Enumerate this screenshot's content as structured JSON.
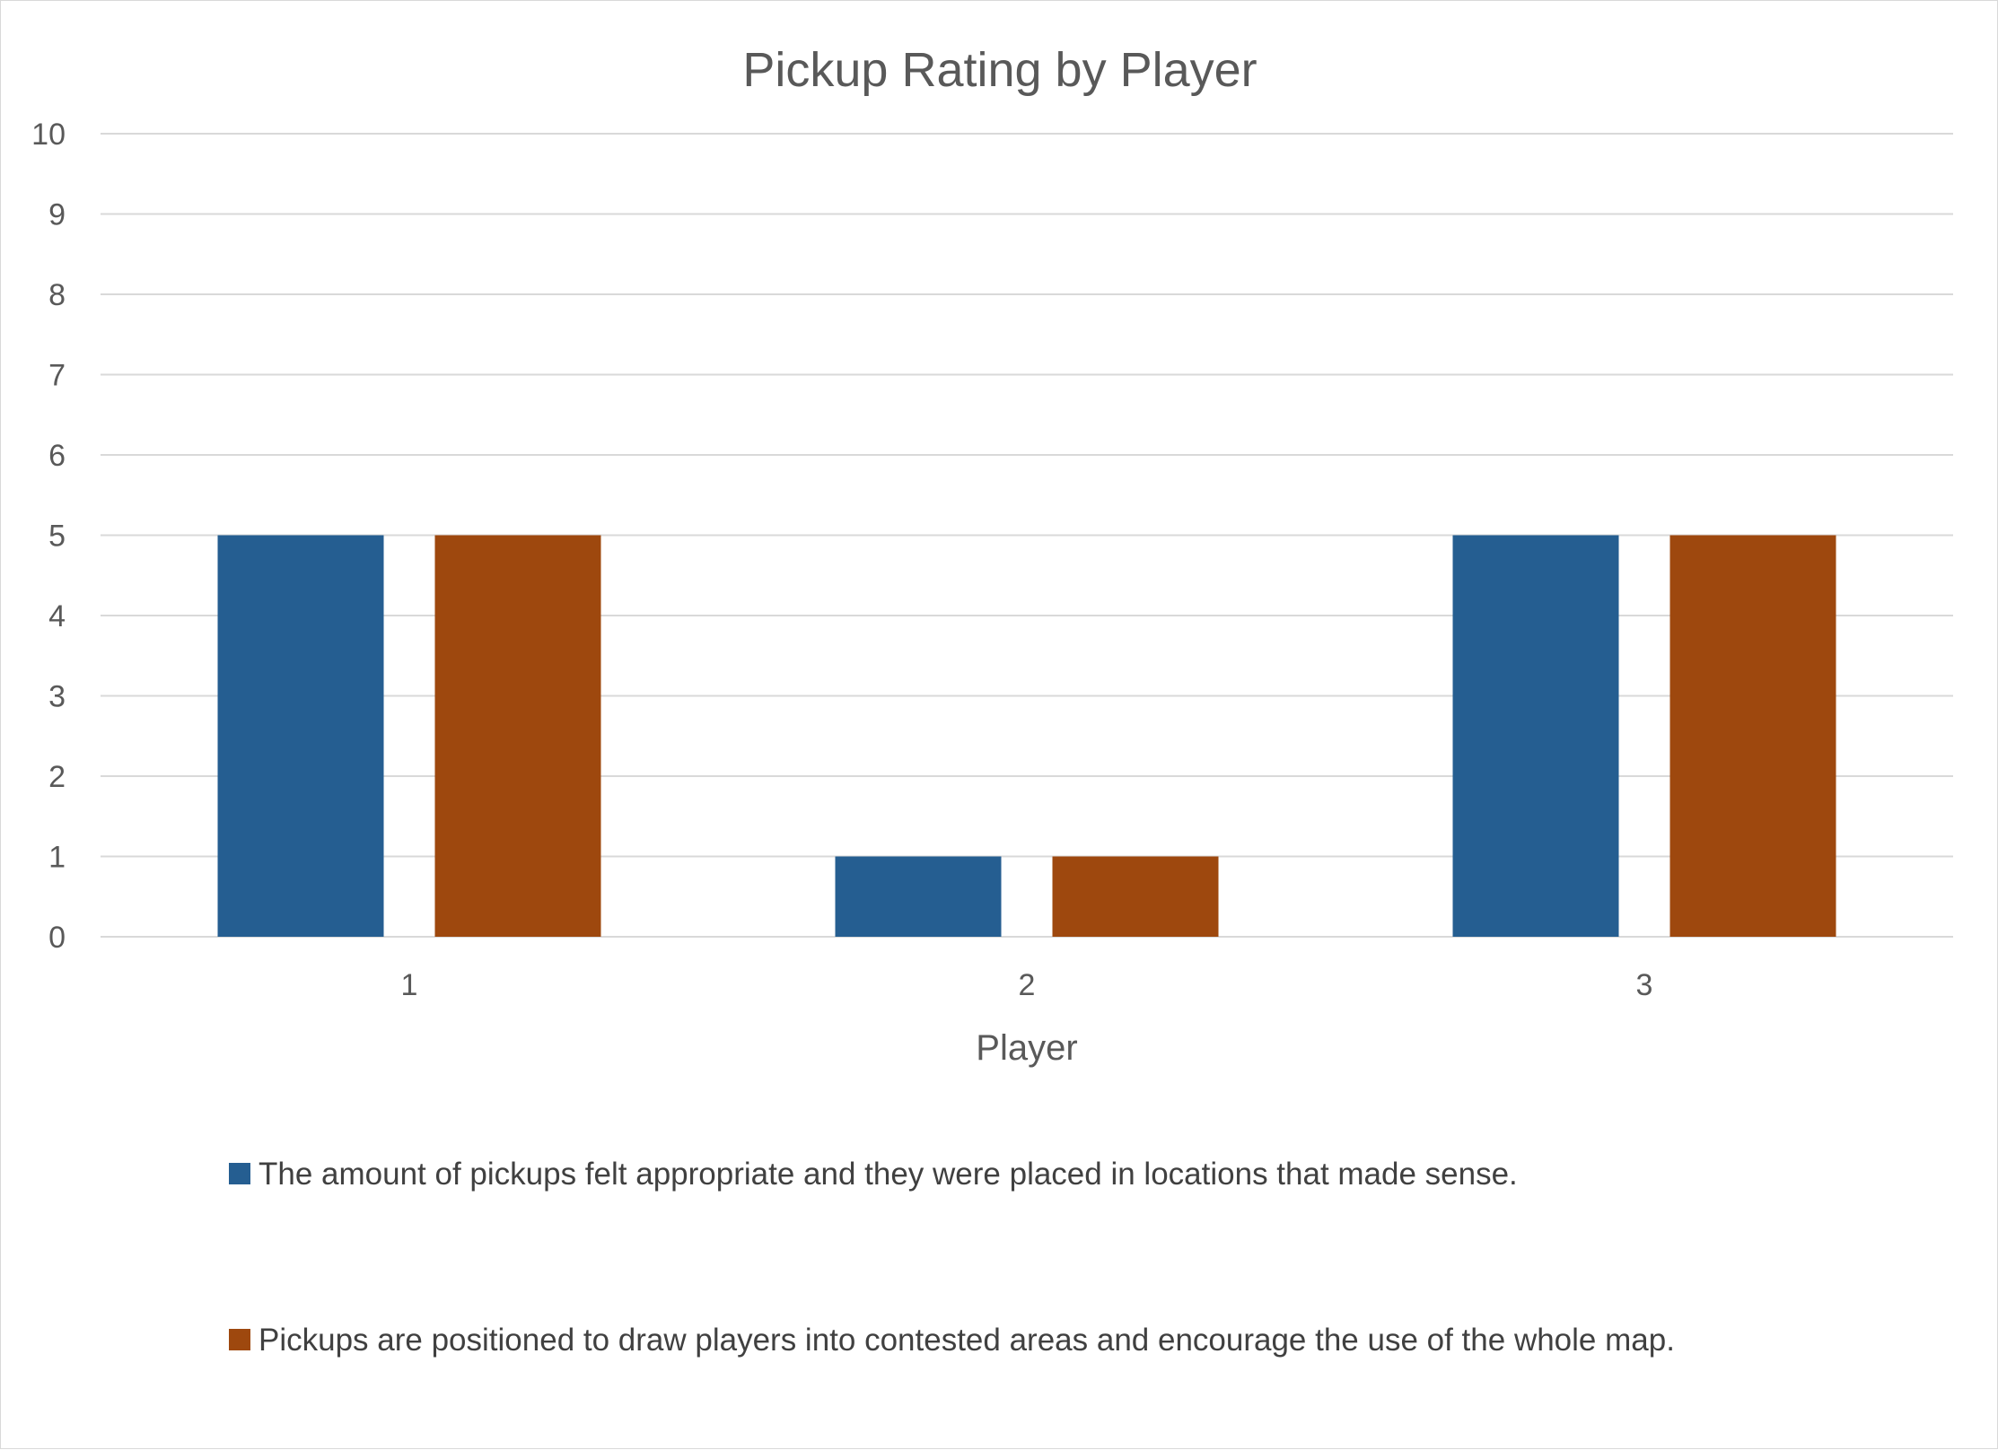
{
  "chart_data": {
    "type": "bar",
    "title": "Pickup Rating by Player",
    "xlabel": "Player",
    "ylabel": "",
    "categories": [
      "1",
      "2",
      "3"
    ],
    "ylim": [
      0,
      10
    ],
    "yticks": [
      0,
      1,
      2,
      3,
      4,
      5,
      6,
      7,
      8,
      9,
      10
    ],
    "grid": true,
    "legend_position": "bottom",
    "series": [
      {
        "name": "The amount of pickups felt appropriate and they were placed in locations that made sense.",
        "values": [
          5,
          1,
          5
        ],
        "color": "#255e91"
      },
      {
        "name": "Pickups are positioned to draw players into contested areas and encourage the use of the whole map.",
        "values": [
          5,
          1,
          5
        ],
        "color": "#9e480e"
      }
    ]
  }
}
